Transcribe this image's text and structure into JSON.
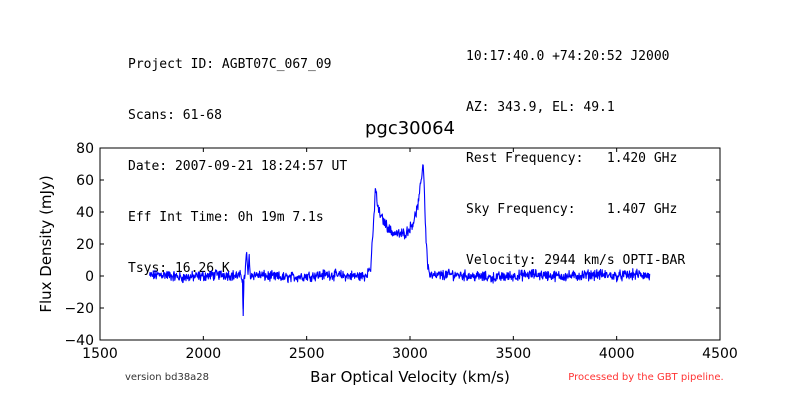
{
  "header": {
    "left": [
      "Project ID: AGBT07C_067_09",
      "Scans: 61-68",
      "Date: 2007-09-21 18:24:57 UT",
      "Eff Int Time: 0h 19m 7.1s",
      "Tsys: 16.26 K"
    ],
    "right": [
      "10:17:40.0 +74:20:52 J2000",
      "AZ: 343.9, EL: 49.1",
      "Rest Frequency:   1.420 GHz",
      "Sky Frequency:    1.407 GHz",
      "Velocity: 2944 km/s OPTI-BAR"
    ]
  },
  "footer": {
    "version": "version bd38a28",
    "processed": "Processed by the GBT pipeline."
  },
  "colors": {
    "series": "#0000ff",
    "footer_processed": "#ff3333",
    "footer_version": "#333333"
  },
  "chart_data": {
    "type": "line",
    "title": "pgc30064",
    "xlabel": "Bar Optical Velocity (km/s)",
    "ylabel": "Flux Density (mJy)",
    "xlim": [
      1500,
      4500
    ],
    "ylim": [
      -40,
      80
    ],
    "xticks": [
      1500,
      2000,
      2500,
      3000,
      3500,
      4000,
      4500
    ],
    "yticks": [
      -40,
      -20,
      0,
      20,
      40,
      60,
      80
    ],
    "grid": false,
    "series": [
      {
        "x": [
          1740,
          1800,
          1900,
          2000,
          2100,
          2180,
          2190,
          2193,
          2196,
          2200,
          2210,
          2215,
          2218,
          2222,
          2226,
          2230,
          2240,
          2300,
          2400,
          2500,
          2600,
          2700,
          2780,
          2810,
          2825,
          2832,
          2838,
          2845,
          2860,
          2880,
          2900,
          2920,
          2950,
          2980,
          3000,
          3020,
          3040,
          3050,
          3058,
          3063,
          3068,
          3075,
          3085,
          3095,
          3110,
          3200,
          3300,
          3400,
          3500,
          3600,
          3700,
          3800,
          3900,
          4000,
          4100,
          4160
        ],
        "y": [
          0,
          1,
          -1,
          0,
          1,
          0,
          -2,
          -25,
          -3,
          0,
          14,
          3,
          2,
          13,
          2,
          0,
          1,
          0,
          -1,
          0,
          1,
          0,
          0,
          5,
          35,
          55,
          50,
          42,
          37,
          33,
          29,
          27,
          26,
          27,
          30,
          35,
          45,
          55,
          65,
          71,
          60,
          30,
          8,
          1,
          0,
          1,
          0,
          -1,
          0,
          1,
          0,
          0,
          1,
          0,
          1,
          0
        ]
      }
    ]
  }
}
